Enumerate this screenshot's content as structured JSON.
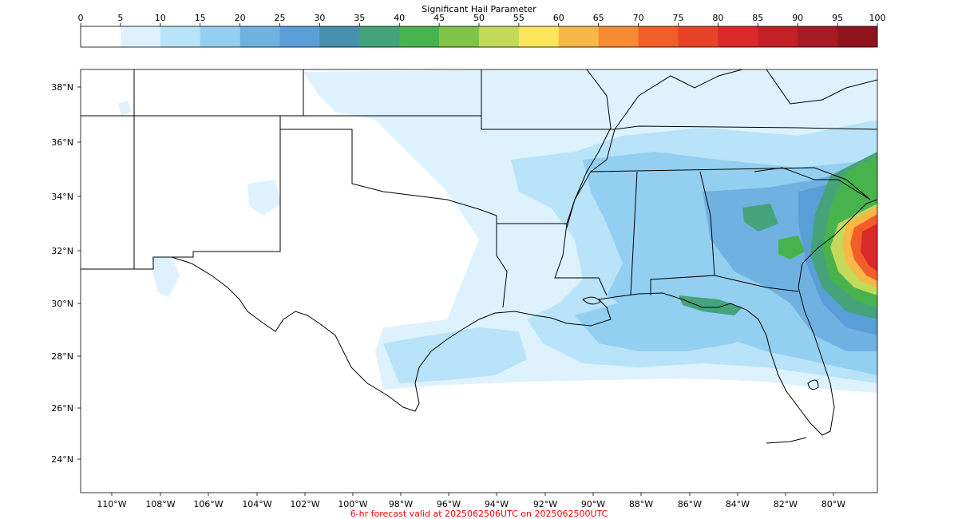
{
  "colorbar": {
    "title": "Significant Hail Parameter",
    "ticks": [
      "0",
      "5",
      "10",
      "15",
      "20",
      "25",
      "30",
      "35",
      "40",
      "45",
      "50",
      "55",
      "60",
      "65",
      "70",
      "75",
      "80",
      "85",
      "90",
      "95",
      "100"
    ],
    "colors": [
      "#ffffff",
      "#ddf2fd",
      "#b8e3f8",
      "#93cff1",
      "#6fb2e2",
      "#5a9ed8",
      "#4890b0",
      "#45a37b",
      "#48b34d",
      "#80c34a",
      "#c2d959",
      "#fbe55a",
      "#f8b847",
      "#f68b36",
      "#f15e29",
      "#e64327",
      "#db2828",
      "#c21f26",
      "#a51b23",
      "#8d141d"
    ]
  },
  "map": {
    "lat_labels": [
      "38°N",
      "36°N",
      "34°N",
      "32°N",
      "30°N",
      "28°N",
      "26°N",
      "24°N"
    ],
    "lon_labels": [
      "110°W",
      "108°W",
      "106°W",
      "104°W",
      "102°W",
      "100°W",
      "98°W",
      "96°W",
      "94°W",
      "92°W",
      "90°W",
      "88°W",
      "86°W",
      "84°W",
      "82°W",
      "80°W"
    ]
  },
  "footer": {
    "text": "6-hr forecast valid at 2025062506UTC on 2025062500UTC"
  }
}
